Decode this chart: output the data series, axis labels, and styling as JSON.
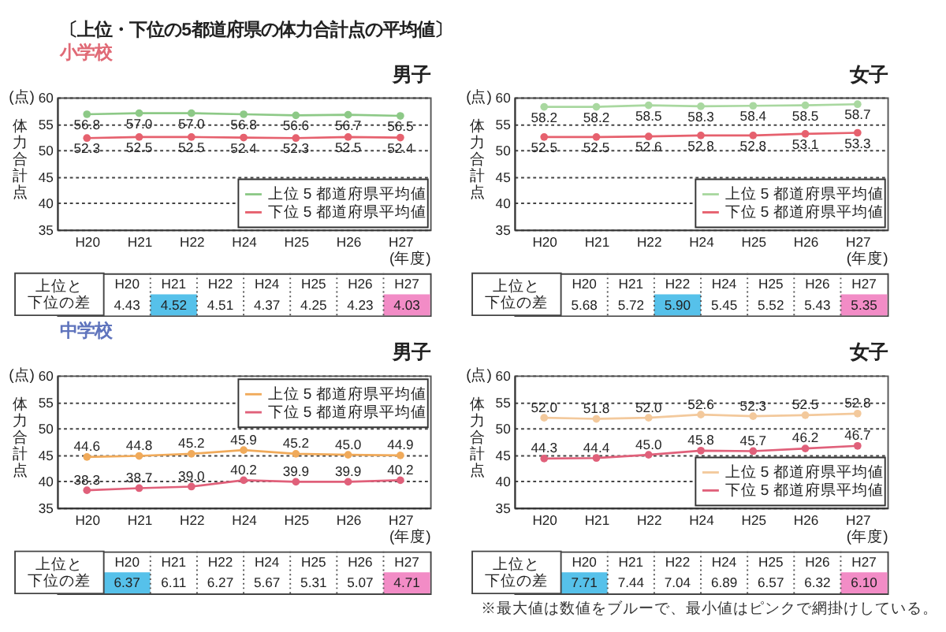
{
  "chart_data": [
    {
      "type": "other",
      "title": "〔上位・下位の5都道府県の体力合計点の平均値〕",
      "annotations": [
        "※最大値は数値をブルーで、最小値はピンクで網掛けしている。"
      ]
    },
    {
      "type": "other",
      "title": "小学校"
    },
    {
      "type": "line",
      "title": "男子",
      "ylabel": "体力合計点",
      "xlabel": "(年度)",
      "annotations": [
        "(点)"
      ],
      "categories": [
        "H20",
        "H21",
        "H22",
        "H24",
        "H25",
        "H26",
        "H27"
      ],
      "series": [
        {
          "name": "上位 5 都道府県平均値",
          "color": "#8dc987",
          "values": [
            56.8,
            57.0,
            57.0,
            56.8,
            56.6,
            56.7,
            56.5
          ],
          "value_labels": [
            "56.8",
            "57.0",
            "57.0",
            "56.8",
            "56.6",
            "56.7",
            "56.5"
          ]
        },
        {
          "name": "下位 5 都道府県平均値",
          "color": "#e6616e",
          "values": [
            52.3,
            52.5,
            52.5,
            52.4,
            52.3,
            52.5,
            52.4
          ],
          "value_labels": [
            "52.3",
            "52.5",
            "52.5",
            "52.4",
            "52.3",
            "52.5",
            "52.4"
          ]
        }
      ],
      "ylim": [
        35,
        60
      ],
      "yticks": [
        35,
        40,
        45,
        50,
        55,
        60
      ],
      "grid": "y",
      "legend": "bottom right",
      "marker": "circle",
      "line_style": "solid"
    },
    {
      "type": "line",
      "title": "女子",
      "ylabel": "体力合計点",
      "xlabel": "(年度)",
      "annotations": [
        "(点)"
      ],
      "categories": [
        "H20",
        "H21",
        "H22",
        "H24",
        "H25",
        "H26",
        "H27"
      ],
      "series": [
        {
          "name": "上位 5 都道府県平均値",
          "color": "#a9d8a0",
          "values": [
            58.2,
            58.2,
            58.5,
            58.3,
            58.4,
            58.5,
            58.7
          ],
          "value_labels": [
            "58.2",
            "58.2",
            "58.5",
            "58.3",
            "58.4",
            "58.5",
            "58.7"
          ]
        },
        {
          "name": "下位 5 都道府県平均値",
          "color": "#e6616e",
          "values": [
            52.5,
            52.5,
            52.6,
            52.8,
            52.8,
            53.1,
            53.3
          ],
          "value_labels": [
            "52.5",
            "52.5",
            "52.6",
            "52.8",
            "52.8",
            "53.1",
            "53.3"
          ]
        }
      ],
      "ylim": [
        35,
        60
      ],
      "yticks": [
        35,
        40,
        45,
        50,
        55,
        60
      ],
      "grid": "y",
      "legend": "bottom right",
      "marker": "circle",
      "line_style": "solid"
    },
    {
      "type": "heatmap",
      "categories": [
        "H20",
        "H21",
        "H22",
        "H24",
        "H25",
        "H26",
        "H27"
      ],
      "y_categories": [
        "上位と下位の差"
      ],
      "cells": [
        [
          4.43,
          4.52,
          4.51,
          4.37,
          4.25,
          4.23,
          4.03
        ]
      ],
      "cell_labels": [
        [
          "4.43",
          "4.52",
          "4.51",
          "4.37",
          "4.25",
          "4.23",
          "4.03"
        ]
      ],
      "colors": [
        "#ffffff",
        "#56c1ea",
        "#ffffff",
        "#ffffff",
        "#ffffff",
        "#ffffff",
        "#f28cc6"
      ]
    },
    {
      "type": "heatmap",
      "categories": [
        "H20",
        "H21",
        "H22",
        "H24",
        "H25",
        "H26",
        "H27"
      ],
      "y_categories": [
        "上位と下位の差"
      ],
      "cells": [
        [
          5.68,
          5.72,
          5.9,
          5.45,
          5.52,
          5.43,
          5.35
        ]
      ],
      "cell_labels": [
        [
          "5.68",
          "5.72",
          "5.90",
          "5.45",
          "5.52",
          "5.43",
          "5.35"
        ]
      ],
      "colors": [
        "#ffffff",
        "#ffffff",
        "#56c1ea",
        "#ffffff",
        "#ffffff",
        "#ffffff",
        "#f28cc6"
      ]
    },
    {
      "type": "other",
      "title": "中学校"
    },
    {
      "type": "line",
      "title": "男子",
      "ylabel": "体力合計点",
      "xlabel": "(年度)",
      "annotations": [
        "(点)"
      ],
      "categories": [
        "H20",
        "H21",
        "H22",
        "H24",
        "H25",
        "H26",
        "H27"
      ],
      "series": [
        {
          "name": "上位 5 都道府県平均値",
          "color": "#f0aa5a",
          "values": [
            44.6,
            44.8,
            45.2,
            45.9,
            45.2,
            45.0,
            44.9
          ],
          "value_labels": [
            "44.6",
            "44.8",
            "45.2",
            "45.9",
            "45.2",
            "45.0",
            "44.9"
          ]
        },
        {
          "name": "下位 5 都道府県平均値",
          "color": "#e0607a",
          "values": [
            38.3,
            38.7,
            39.0,
            40.2,
            39.9,
            39.9,
            40.2
          ],
          "value_labels": [
            "38.3",
            "38.7",
            "39.0",
            "40.2",
            "39.9",
            "39.9",
            "40.2"
          ]
        }
      ],
      "ylim": [
        35,
        60
      ],
      "yticks": [
        35,
        40,
        45,
        50,
        55,
        60
      ],
      "grid": "y",
      "legend": "top right",
      "marker": "circle",
      "line_style": "solid"
    },
    {
      "type": "line",
      "title": "女子",
      "ylabel": "体力合計点",
      "xlabel": "(年度)",
      "annotations": [
        "(点)"
      ],
      "categories": [
        "H20",
        "H21",
        "H22",
        "H24",
        "H25",
        "H26",
        "H27"
      ],
      "series": [
        {
          "name": "上位 5 都道府県平均値",
          "color": "#f3c99c",
          "values": [
            52.0,
            51.8,
            52.0,
            52.6,
            52.3,
            52.5,
            52.8
          ],
          "value_labels": [
            "52.0",
            "51.8",
            "52.0",
            "52.6",
            "52.3",
            "52.5",
            "52.8"
          ]
        },
        {
          "name": "下位 5 都道府県平均値",
          "color": "#e0607a",
          "values": [
            44.3,
            44.4,
            45.0,
            45.8,
            45.7,
            46.2,
            46.7
          ],
          "value_labels": [
            "44.3",
            "44.4",
            "45.0",
            "45.8",
            "45.7",
            "46.2",
            "46.7"
          ]
        }
      ],
      "ylim": [
        35,
        60
      ],
      "yticks": [
        35,
        40,
        45,
        50,
        55,
        60
      ],
      "grid": "y",
      "legend": "bottom right",
      "marker": "circle",
      "line_style": "solid"
    },
    {
      "type": "heatmap",
      "categories": [
        "H20",
        "H21",
        "H22",
        "H24",
        "H25",
        "H26",
        "H27"
      ],
      "y_categories": [
        "上位と下位の差"
      ],
      "cells": [
        [
          6.37,
          6.11,
          6.27,
          5.67,
          5.31,
          5.07,
          4.71
        ]
      ],
      "cell_labels": [
        [
          "6.37",
          "6.11",
          "6.27",
          "5.67",
          "5.31",
          "5.07",
          "4.71"
        ]
      ],
      "colors": [
        "#56c1ea",
        "#ffffff",
        "#ffffff",
        "#ffffff",
        "#ffffff",
        "#ffffff",
        "#f28cc6"
      ]
    },
    {
      "type": "heatmap",
      "categories": [
        "H20",
        "H21",
        "H22",
        "H24",
        "H25",
        "H26",
        "H27"
      ],
      "y_categories": [
        "上位と下位の差"
      ],
      "cells": [
        [
          7.71,
          7.44,
          7.04,
          6.89,
          6.57,
          6.32,
          6.1
        ]
      ],
      "cell_labels": [
        [
          "7.71",
          "7.44",
          "7.04",
          "6.89",
          "6.57",
          "6.32",
          "6.10"
        ]
      ],
      "colors": [
        "#56c1ea",
        "#ffffff",
        "#ffffff",
        "#ffffff",
        "#ffffff",
        "#ffffff",
        "#f28cc6"
      ]
    }
  ]
}
